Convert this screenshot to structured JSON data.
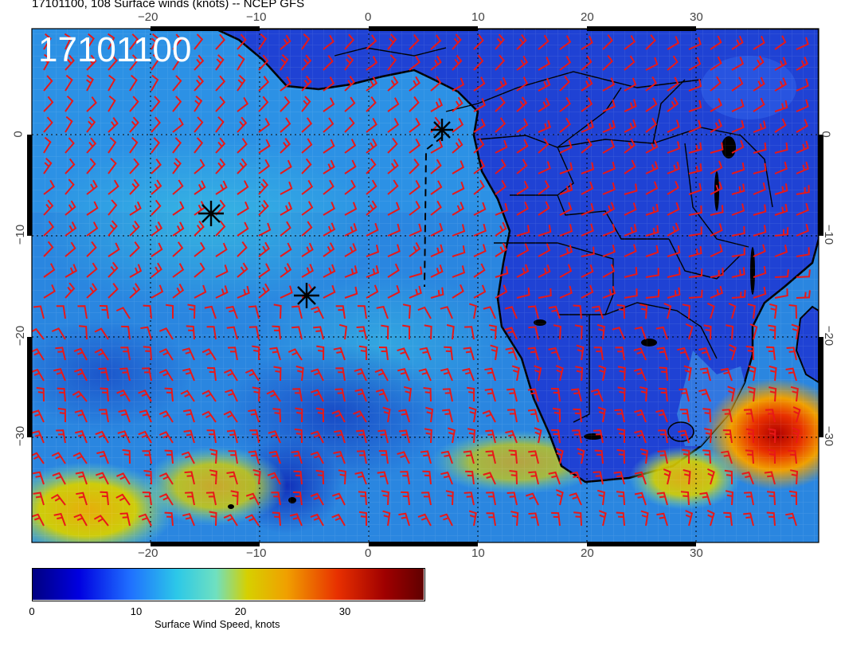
{
  "title": "17101100, 108 Surface winds (knots) -- NCEP GFS",
  "stamp": "17101100",
  "top_ticks": [
    "−20",
    "−10",
    "0",
    "10",
    "20",
    "30"
  ],
  "bottom_ticks": [
    "−20",
    "−10",
    "0",
    "10",
    "20",
    "30"
  ],
  "left_ticks": [
    "0",
    "−10",
    "−20",
    "−30"
  ],
  "right_ticks": [
    "0",
    "−10",
    "−20",
    "−30"
  ],
  "colorbar": {
    "label": "Surface Wind Speed, knots",
    "ticks": [
      "0",
      "10",
      "20",
      "30"
    ],
    "stops": [
      "#00007f",
      "#0000e0",
      "#1f6fff",
      "#2cc8e8",
      "#6fe0c0",
      "#d6d000",
      "#f0a000",
      "#e83000",
      "#a00000",
      "#600000"
    ]
  },
  "colors": {
    "barb": "#e81818",
    "ocean_mid": "#2f8fe0",
    "land": "#1a3fd0",
    "jet": "#e83000"
  },
  "markers": [
    "asterisk",
    "asterisk",
    "asterisk"
  ]
}
